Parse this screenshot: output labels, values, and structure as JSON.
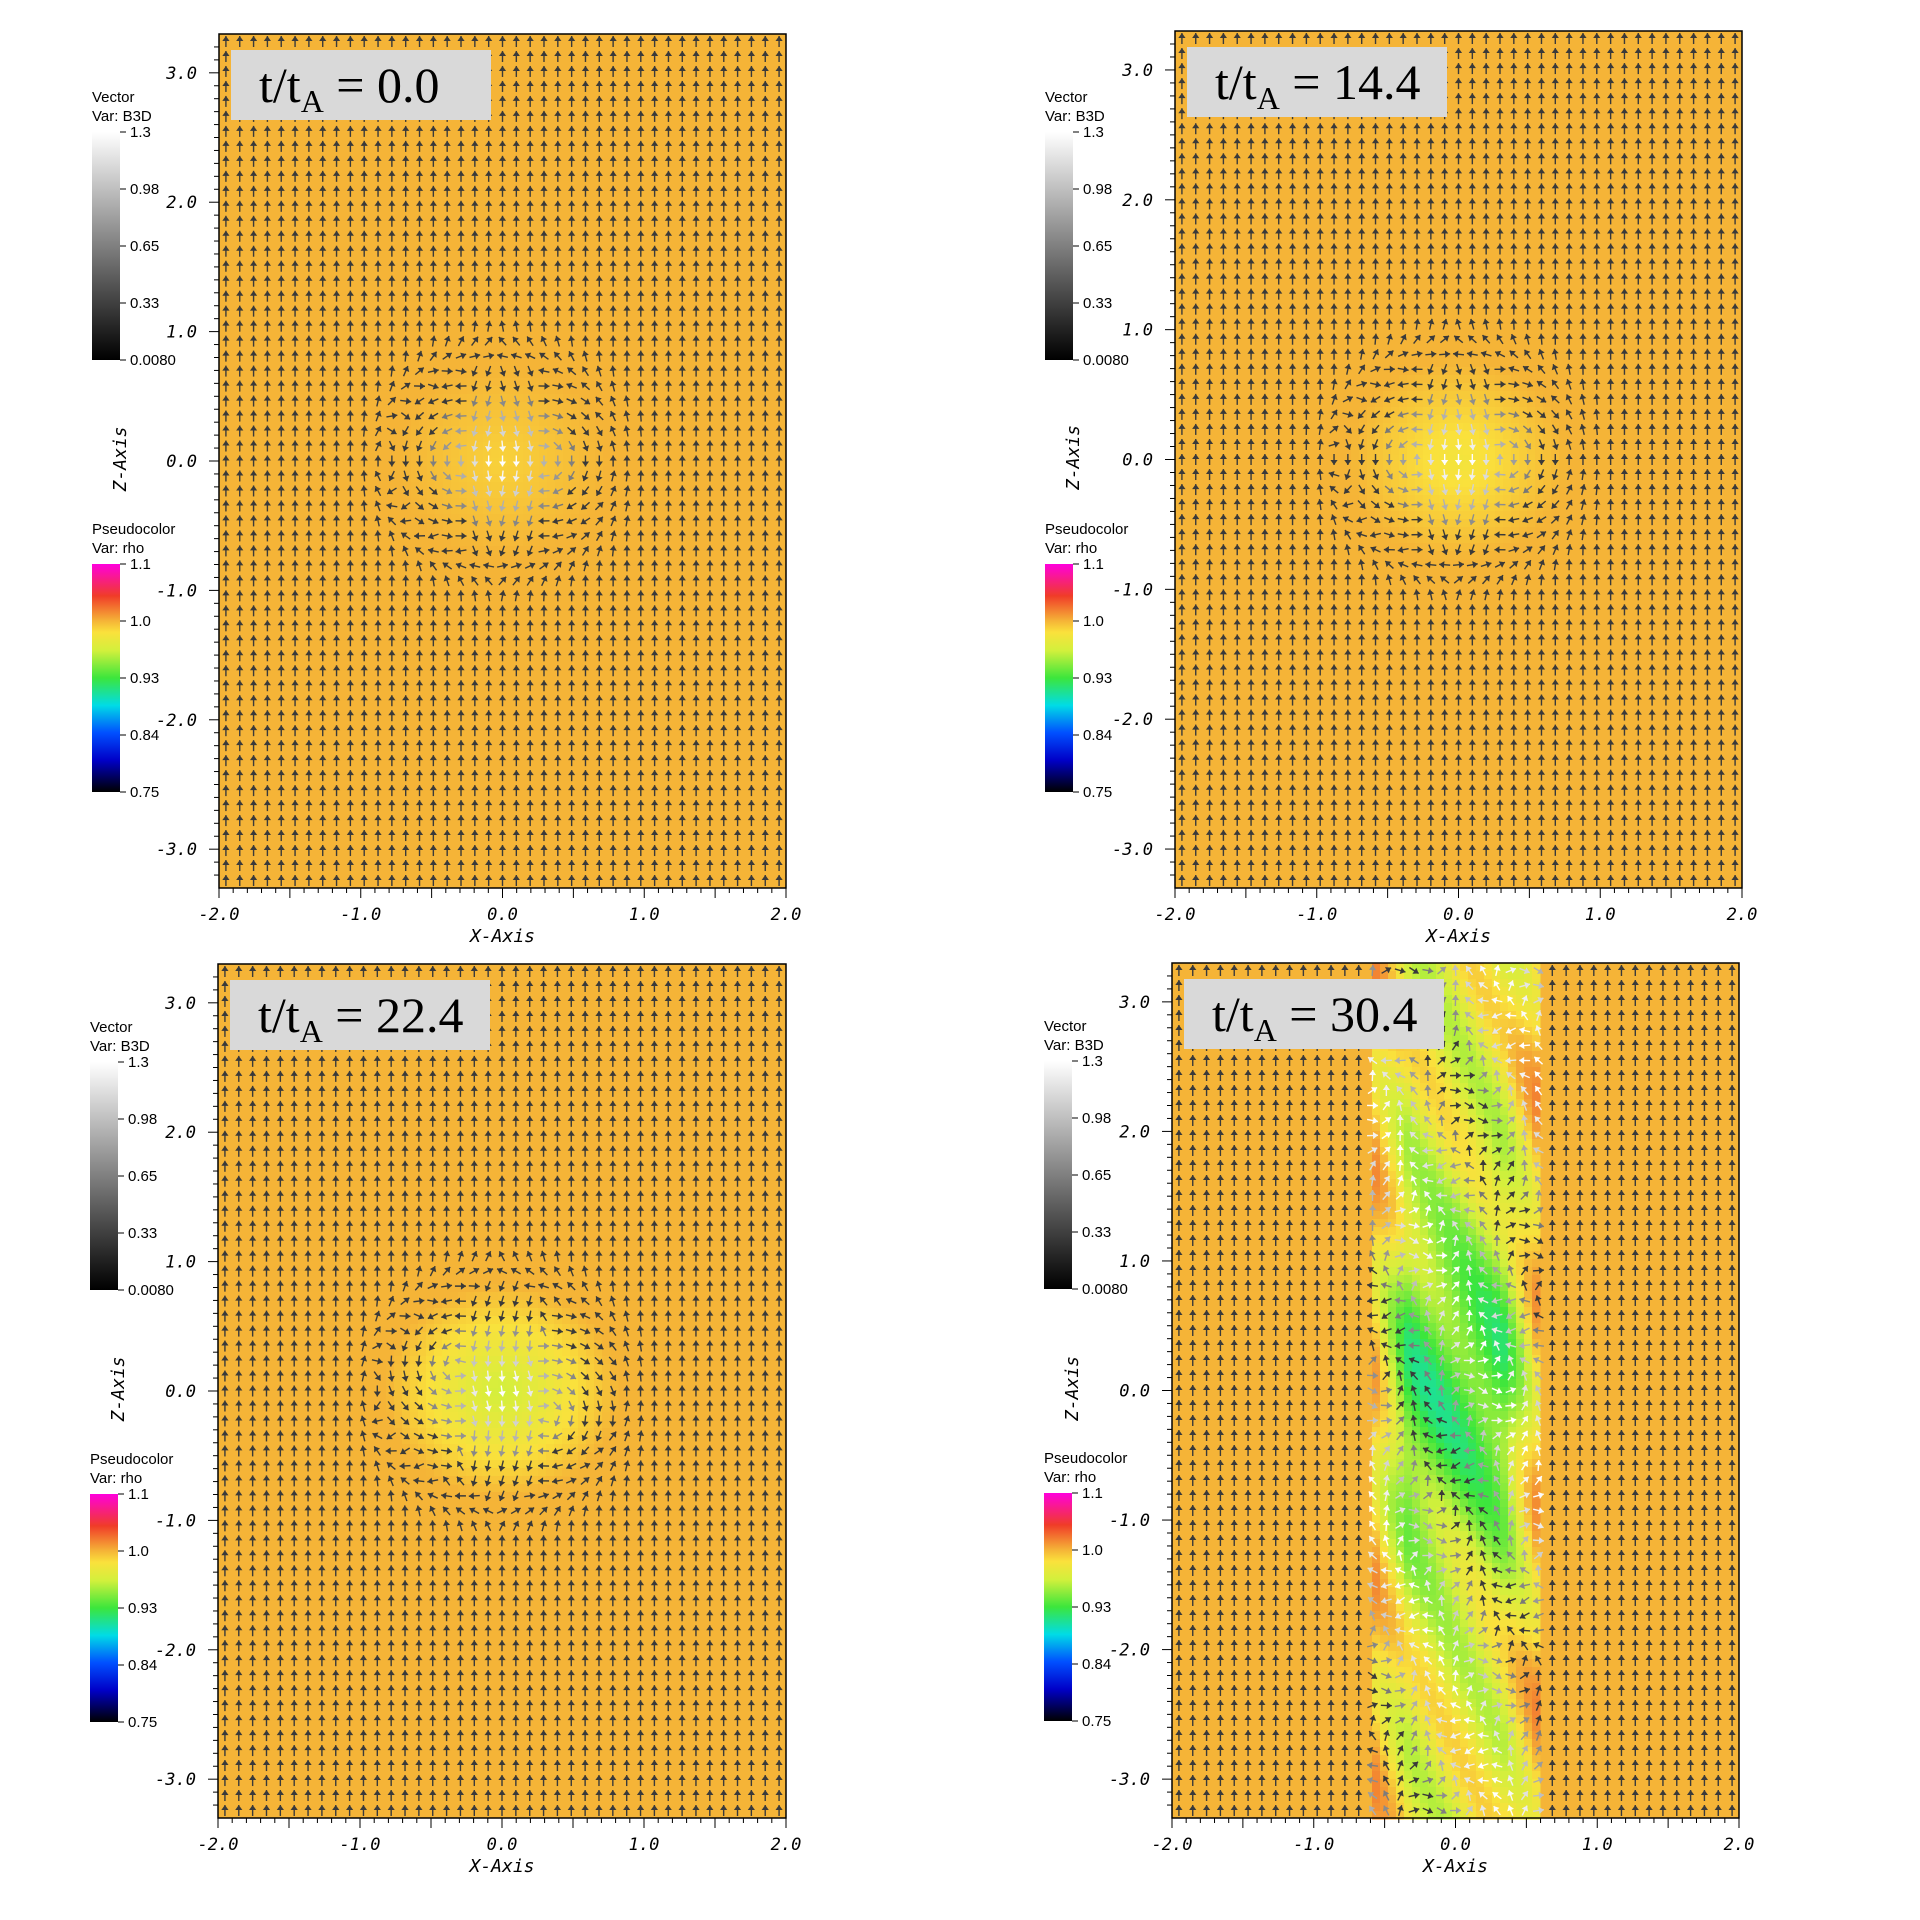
{
  "chart_data": [
    {
      "type": "vector_field_pseudocolor",
      "time_label": {
        "main": "t/t",
        "sub": "A",
        "rest": " = 0.0"
      },
      "time": 0.0,
      "xlabel": "X-Axis",
      "ylabel": "Z-Axis",
      "xlim": [
        -2.0,
        2.0
      ],
      "ylim": [
        -3.3,
        3.3
      ],
      "xticks": [
        "-2.0",
        "-1.0",
        "0.0",
        "1.0",
        "2.0"
      ],
      "yticks": [
        "3.0",
        "2.0",
        "1.0",
        "0.0",
        "-1.0",
        "-2.0",
        "-3.0"
      ],
      "vector_legend": {
        "title": "Vector",
        "var": "Var: B3D",
        "ticks": [
          "1.3",
          "0.98",
          "0.65",
          "0.33",
          "0.0080"
        ]
      },
      "pseudo_legend": {
        "title": "Pseudocolor",
        "var": "Var: rho",
        "ticks": [
          "1.1",
          "1.0",
          "0.93",
          "0.84",
          "0.75"
        ]
      },
      "background_rho": 1.0,
      "structure": {
        "kind": "flux_rope",
        "center": [
          0.0,
          0.0
        ],
        "radius": 0.75,
        "rho_inside": 0.99,
        "left_center": [
          -0.28,
          0.0
        ],
        "right_center": [
          0.28,
          0.0
        ]
      }
    },
    {
      "type": "vector_field_pseudocolor",
      "time_label": {
        "main": "t/t",
        "sub": "A",
        "rest": " = 14.4"
      },
      "time": 14.4,
      "xlabel": "X-Axis",
      "ylabel": "Z-Axis",
      "xlim": [
        -2.0,
        2.0
      ],
      "ylim": [
        -3.3,
        3.3
      ],
      "xticks": [
        "-2.0",
        "-1.0",
        "0.0",
        "1.0",
        "2.0"
      ],
      "yticks": [
        "3.0",
        "2.0",
        "1.0",
        "0.0",
        "-1.0",
        "-2.0",
        "-3.0"
      ],
      "vector_legend": {
        "title": "Vector",
        "var": "Var: B3D",
        "ticks": [
          "1.3",
          "0.98",
          "0.65",
          "0.33",
          "0.0080"
        ]
      },
      "pseudo_legend": {
        "title": "Pseudocolor",
        "var": "Var: rho",
        "ticks": [
          "1.1",
          "1.0",
          "0.93",
          "0.84",
          "0.75"
        ]
      },
      "background_rho": 1.0,
      "structure": {
        "kind": "flux_rope",
        "center": [
          0.0,
          0.0
        ],
        "radius": 0.78,
        "rho_inside": 0.98,
        "left_center": [
          -0.3,
          0.0
        ],
        "right_center": [
          0.3,
          0.0
        ]
      }
    },
    {
      "type": "vector_field_pseudocolor",
      "time_label": {
        "main": "t/t",
        "sub": "A",
        "rest": " = 22.4"
      },
      "time": 22.4,
      "xlabel": "X-Axis",
      "ylabel": "Z-Axis",
      "xlim": [
        -2.0,
        2.0
      ],
      "ylim": [
        -3.3,
        3.3
      ],
      "xticks": [
        "-2.0",
        "-1.0",
        "0.0",
        "1.0",
        "2.0"
      ],
      "yticks": [
        "3.0",
        "2.0",
        "1.0",
        "0.0",
        "-1.0",
        "-2.0",
        "-3.0"
      ],
      "vector_legend": {
        "title": "Vector",
        "var": "Var: B3D",
        "ticks": [
          "1.3",
          "0.98",
          "0.65",
          "0.33",
          "0.0080"
        ]
      },
      "pseudo_legend": {
        "title": "Pseudocolor",
        "var": "Var: rho",
        "ticks": [
          "1.1",
          "1.0",
          "0.93",
          "0.84",
          "0.75"
        ]
      },
      "background_rho": 1.0,
      "structure": {
        "kind": "tilted_flux_rope",
        "center": [
          0.0,
          0.0
        ],
        "radius": 0.82,
        "rho_inside": 0.96,
        "left_center": [
          -0.3,
          0.2
        ],
        "right_center": [
          0.3,
          -0.2
        ]
      }
    },
    {
      "type": "vector_field_pseudocolor",
      "time_label": {
        "main": "t/t",
        "sub": "A",
        "rest": " = 30.4"
      },
      "time": 30.4,
      "xlabel": "X-Axis",
      "ylabel": "Z-Axis",
      "xlim": [
        -2.0,
        2.0
      ],
      "ylim": [
        -3.3,
        3.3
      ],
      "xticks": [
        "-2.0",
        "-1.0",
        "0.0",
        "1.0",
        "2.0"
      ],
      "yticks": [
        "3.0",
        "2.0",
        "1.0",
        "0.0",
        "-1.0",
        "-2.0",
        "-3.0"
      ],
      "vector_legend": {
        "title": "Vector",
        "var": "Var: B3D",
        "ticks": [
          "1.3",
          "0.98",
          "0.65",
          "0.33",
          "0.0080"
        ]
      },
      "pseudo_legend": {
        "title": "Pseudocolor",
        "var": "Var: rho",
        "ticks": [
          "1.1",
          "1.0",
          "0.93",
          "0.84",
          "0.75"
        ]
      },
      "background_rho": 1.0,
      "structure": {
        "kind": "elongated_turbulent",
        "center": [
          0.0,
          0.0
        ],
        "half_width": 0.6,
        "half_height": 3.3,
        "rho_core": 0.92,
        "rho_min": 0.88
      }
    }
  ]
}
